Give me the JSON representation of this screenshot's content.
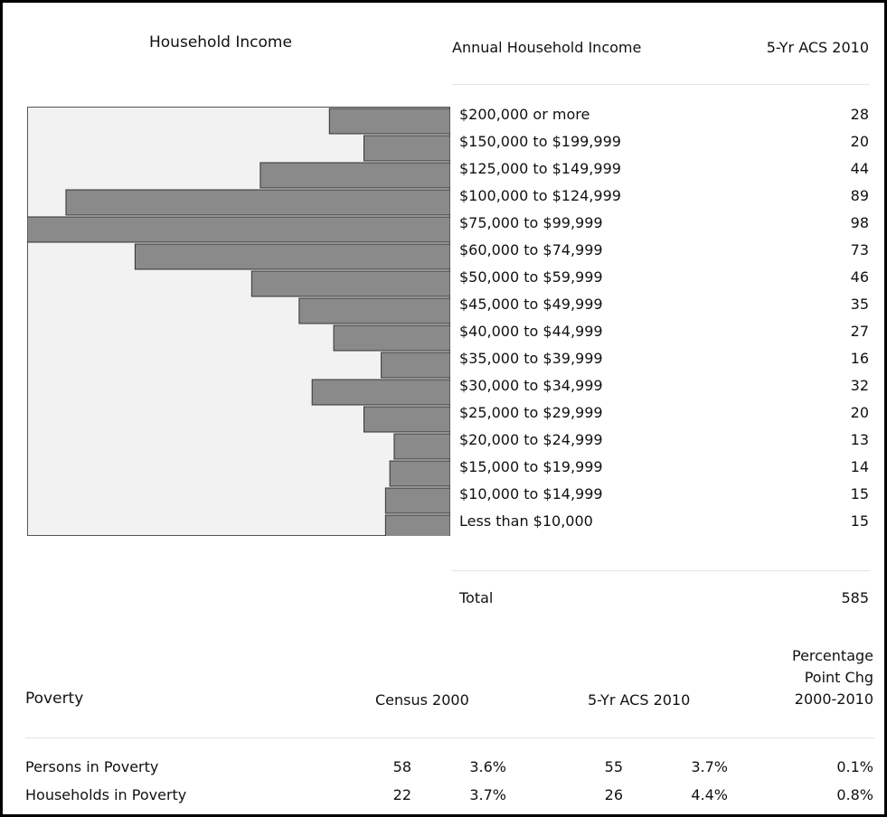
{
  "chart_data": {
    "type": "bar",
    "title": "Household Income",
    "orientation": "horizontal-left",
    "grid": false,
    "xlim": [
      0,
      98
    ],
    "categories": [
      "$200,000 or more",
      "$150,000 to $199,999",
      "$125,000 to $149,999",
      "$100,000 to $124,999",
      "$75,000 to $99,999",
      "$60,000 to $74,999",
      "$50,000 to $59,999",
      "$45,000 to $49,999",
      "$40,000 to $44,999",
      "$35,000 to $39,999",
      "$30,000 to $34,999",
      "$25,000 to $29,999",
      "$20,000 to $24,999",
      "$15,000 to $19,999",
      "$10,000 to $14,999",
      "Less than $10,000"
    ],
    "values": [
      28,
      20,
      44,
      89,
      98,
      73,
      46,
      35,
      27,
      16,
      32,
      20,
      13,
      14,
      15,
      15
    ],
    "bar_color": "#8a8a8a",
    "background_color": "#f2f2f2"
  },
  "income_table": {
    "header_label": "Annual Household Income",
    "header_year": "5-Yr ACS 2010",
    "rows": [
      {
        "label": "$200,000 or more",
        "value": "28"
      },
      {
        "label": "$150,000 to $199,999",
        "value": "20"
      },
      {
        "label": "$125,000 to $149,999",
        "value": "44"
      },
      {
        "label": "$100,000 to $124,999",
        "value": "89"
      },
      {
        "label": "$75,000 to $99,999",
        "value": "98"
      },
      {
        "label": "$60,000 to $74,999",
        "value": "73"
      },
      {
        "label": "$50,000 to $59,999",
        "value": "46"
      },
      {
        "label": "$45,000 to $49,999",
        "value": "35"
      },
      {
        "label": "$40,000 to $44,999",
        "value": "27"
      },
      {
        "label": "$35,000 to $39,999",
        "value": "16"
      },
      {
        "label": "$30,000 to $34,999",
        "value": "32"
      },
      {
        "label": "$25,000 to $29,999",
        "value": "20"
      },
      {
        "label": "$20,000 to $24,999",
        "value": "13"
      },
      {
        "label": "$15,000 to $19,999",
        "value": "14"
      },
      {
        "label": "$10,000 to $14,999",
        "value": "15"
      },
      {
        "label": "Less than $10,000",
        "value": "15"
      }
    ],
    "total_label": "Total",
    "total_value": "585"
  },
  "poverty": {
    "title": "Poverty",
    "col_census": "Census 2000",
    "col_acs": "5-Yr ACS 2010",
    "col_pct_line1": "Percentage",
    "col_pct_line2": "Point Chg",
    "col_pct_line3": "2000-2010",
    "rows": [
      {
        "label": "Persons in Poverty",
        "c_num": "58",
        "c_pct": "3.6%",
        "a_num": "55",
        "a_pct": "3.7%",
        "chg": "0.1%"
      },
      {
        "label": "Households in Poverty",
        "c_num": "22",
        "c_pct": "3.7%",
        "a_num": "26",
        "a_pct": "4.4%",
        "chg": "0.8%"
      }
    ]
  }
}
